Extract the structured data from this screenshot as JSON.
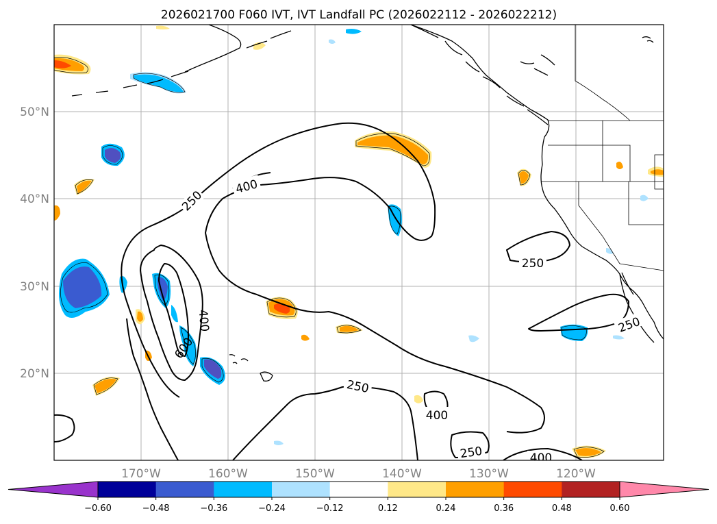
{
  "title": "2026021700 F060 IVT, IVT Landfall PC (2026022112 - 2026022212)",
  "lat_labels": [
    "50°N",
    "40°N",
    "30°N",
    "20°N"
  ],
  "lon_labels": [
    "170°W",
    "160°W",
    "150°W",
    "140°W",
    "130°W",
    "120°W"
  ],
  "contour_labels": [
    "250",
    "400",
    "600",
    "400",
    "250",
    "250",
    "250",
    "400",
    "250",
    "400"
  ],
  "colorbar": {
    "ticks": [
      "−0.60",
      "−0.48",
      "−0.36",
      "−0.24",
      "−0.12",
      "0.12",
      "0.24",
      "0.36",
      "0.48",
      "0.60"
    ],
    "colors": [
      "#9933cc",
      "#000099",
      "#3a5bd0",
      "#00bbff",
      "#aee2ff",
      "#ffffff",
      "#ffe888",
      "#ff9f00",
      "#ff4a00",
      "#b22222",
      "#ff88aa"
    ]
  },
  "colors": {
    "neg_light": "#aee2ff",
    "neg_mid": "#00bbff",
    "neg_dark": "#3a5bd0",
    "neg_darker": "#5050c0",
    "pos_light": "#ffe888",
    "pos_mid": "#ff9f00",
    "pos_dark": "#ff4a00"
  }
}
